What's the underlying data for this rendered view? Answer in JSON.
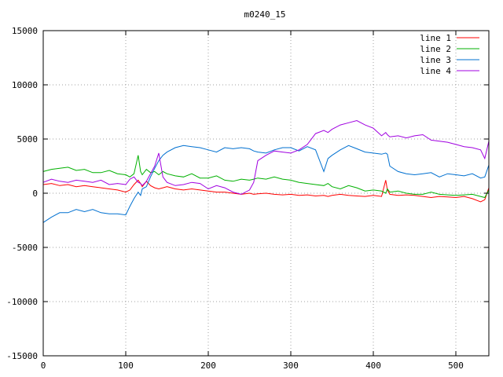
{
  "chart_data": {
    "type": "line",
    "title": "m0240_15",
    "xlabel": "",
    "ylabel": "",
    "xlim": [
      0,
      540
    ],
    "ylim": [
      -15000,
      15000
    ],
    "x_ticks": [
      0,
      100,
      200,
      300,
      400,
      500
    ],
    "y_ticks": [
      -15000,
      -10000,
      -5000,
      0,
      5000,
      10000,
      15000
    ],
    "grid": true,
    "legend_position": "top-right",
    "x": [
      0,
      10,
      20,
      30,
      40,
      50,
      60,
      70,
      80,
      90,
      100,
      105,
      110,
      115,
      118,
      120,
      125,
      130,
      135,
      140,
      145,
      150,
      160,
      170,
      180,
      190,
      200,
      210,
      220,
      230,
      240,
      250,
      255,
      260,
      270,
      280,
      290,
      300,
      310,
      320,
      330,
      340,
      345,
      350,
      360,
      370,
      380,
      390,
      400,
      410,
      415,
      417,
      420,
      430,
      440,
      450,
      460,
      470,
      480,
      490,
      500,
      510,
      520,
      530,
      535,
      540
    ],
    "series": [
      {
        "name": "line 1",
        "color": "#ff0000",
        "values": [
          800,
          900,
          700,
          800,
          600,
          700,
          600,
          500,
          400,
          300,
          100,
          300,
          800,
          1200,
          900,
          600,
          1100,
          700,
          500,
          400,
          500,
          600,
          400,
          300,
          400,
          300,
          200,
          100,
          100,
          0,
          -100,
          0,
          -100,
          -50,
          0,
          -100,
          -150,
          -100,
          -200,
          -150,
          -250,
          -200,
          -300,
          -200,
          -100,
          -200,
          -250,
          -300,
          -200,
          -300,
          1200,
          300,
          -100,
          -200,
          -150,
          -200,
          -300,
          -400,
          -300,
          -350,
          -400,
          -300,
          -500,
          -800,
          -600,
          500
        ]
      },
      {
        "name": "line 2",
        "color": "#00b000",
        "values": [
          2000,
          2200,
          2300,
          2400,
          2100,
          2200,
          1900,
          1900,
          2100,
          1800,
          1700,
          1500,
          1800,
          3500,
          2000,
          1700,
          2200,
          1900,
          2000,
          1700,
          2000,
          1800,
          1600,
          1500,
          1800,
          1400,
          1400,
          1600,
          1200,
          1100,
          1300,
          1200,
          1300,
          1400,
          1300,
          1500,
          1300,
          1200,
          1000,
          900,
          800,
          700,
          900,
          600,
          400,
          700,
          500,
          200,
          300,
          200,
          0,
          400,
          100,
          200,
          0,
          -100,
          -100,
          100,
          -100,
          -150,
          -200,
          -150,
          -100,
          -300,
          -400,
          300
        ]
      },
      {
        "name": "line 3",
        "color": "#0070d0",
        "values": [
          -2700,
          -2200,
          -1800,
          -1800,
          -1500,
          -1700,
          -1500,
          -1800,
          -1900,
          -1900,
          -2000,
          -1200,
          -500,
          100,
          -200,
          400,
          600,
          1500,
          2300,
          3000,
          3500,
          3800,
          4200,
          4400,
          4300,
          4200,
          4000,
          3800,
          4200,
          4100,
          4200,
          4100,
          3900,
          3800,
          3700,
          4000,
          4200,
          4200,
          3900,
          4300,
          4000,
          2000,
          3200,
          3500,
          4000,
          4400,
          4100,
          3800,
          3700,
          3600,
          3700,
          3600,
          2500,
          2000,
          1800,
          1700,
          1800,
          1900,
          1500,
          1800,
          1700,
          1600,
          1800,
          1400,
          1500,
          2600
        ]
      },
      {
        "name": "line 4",
        "color": "#a000e0",
        "values": [
          1000,
          1300,
          1100,
          1000,
          1200,
          1100,
          1000,
          1200,
          800,
          900,
          800,
          1300,
          1500,
          1000,
          900,
          700,
          1100,
          1800,
          2500,
          3700,
          1500,
          1000,
          700,
          800,
          1000,
          900,
          400,
          700,
          500,
          100,
          -100,
          300,
          1000,
          3000,
          3500,
          3900,
          3800,
          3700,
          4000,
          4500,
          5500,
          5800,
          5600,
          5900,
          6300,
          6500,
          6700,
          6300,
          6000,
          5300,
          5600,
          5400,
          5200,
          5300,
          5100,
          5300,
          5400,
          4900,
          4800,
          4700,
          4500,
          4300,
          4200,
          4000,
          3200,
          4800
        ]
      }
    ]
  }
}
